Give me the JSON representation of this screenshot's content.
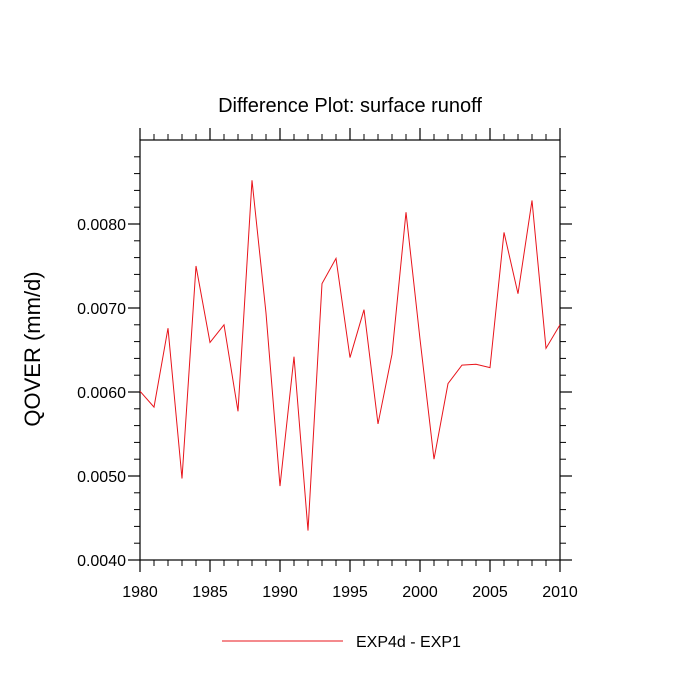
{
  "chart_data": {
    "type": "line",
    "title": "Difference Plot: surface runoff",
    "xlabel": "",
    "ylabel": "QOVER  (mm/d)",
    "xlim": [
      1980,
      2010
    ],
    "ylim": [
      0.004,
      0.009
    ],
    "x_ticks": [
      1980,
      1985,
      1990,
      1995,
      2000,
      2005,
      2010
    ],
    "x_tick_labels": [
      "1980",
      "1985",
      "1990",
      "1995",
      "2000",
      "2005",
      "2010"
    ],
    "y_ticks": [
      0.004,
      0.005,
      0.006,
      0.007,
      0.008
    ],
    "y_tick_labels": [
      "0.0040",
      "0.0050",
      "0.0060",
      "0.0070",
      "0.0080"
    ],
    "grid": false,
    "legend_position": "bottom",
    "series": [
      {
        "name": "EXP4d - EXP1",
        "color": "#e8141b",
        "x": [
          1980,
          1981,
          1982,
          1983,
          1984,
          1985,
          1986,
          1987,
          1988,
          1989,
          1990,
          1991,
          1992,
          1993,
          1994,
          1995,
          1996,
          1997,
          1998,
          1999,
          2000,
          2001,
          2002,
          2003,
          2004,
          2005,
          2006,
          2007,
          2008,
          2009,
          2010
        ],
        "values": [
          0.00601,
          0.00582,
          0.00676,
          0.00497,
          0.0075,
          0.00659,
          0.0068,
          0.00577,
          0.00852,
          0.00694,
          0.00488,
          0.00642,
          0.00435,
          0.00729,
          0.00759,
          0.00641,
          0.00698,
          0.00562,
          0.00645,
          0.00814,
          0.00663,
          0.0052,
          0.0061,
          0.00632,
          0.00633,
          0.00629,
          0.0079,
          0.00717,
          0.00828,
          0.00652,
          0.0068
        ]
      }
    ]
  }
}
